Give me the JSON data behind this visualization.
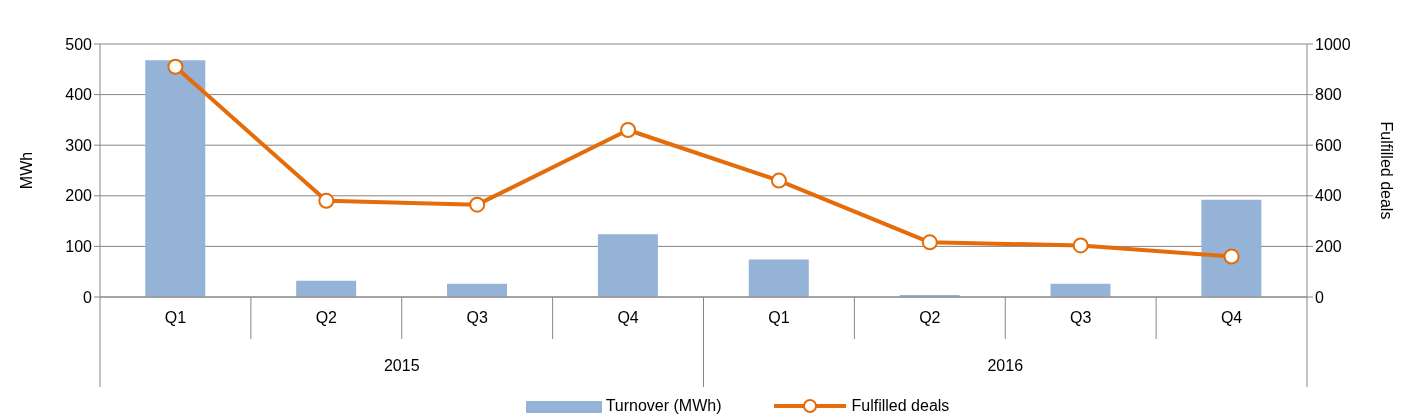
{
  "chart_data": {
    "type": "bar",
    "ylabel": "MWh",
    "y2label": "Fulfilled deals",
    "categories": [
      "Q1",
      "Q2",
      "Q3",
      "Q4",
      "Q1",
      "Q2",
      "Q3",
      "Q4"
    ],
    "annotations": [
      "2015",
      "2016"
    ],
    "series": [
      {
        "name": "Turnover (MWh)",
        "color": "#95b3d7",
        "values": [
          468,
          32,
          26,
          124,
          74,
          4,
          26,
          192
        ]
      },
      {
        "name": "Fulfilled deals",
        "type": "line",
        "axis": "y2",
        "color": "#e46c0a",
        "values": [
          910,
          380,
          365,
          660,
          460,
          216,
          204,
          160
        ]
      }
    ],
    "ylim": [
      0,
      500
    ],
    "yticks": [
      0,
      100,
      200,
      300,
      400,
      500
    ],
    "y2lim": [
      0,
      1000
    ],
    "y2ticks": [
      0,
      200,
      400,
      600,
      800,
      1000
    ],
    "grid": "y",
    "legend": "bottom",
    "marker": "circle",
    "line_style": "solid"
  }
}
